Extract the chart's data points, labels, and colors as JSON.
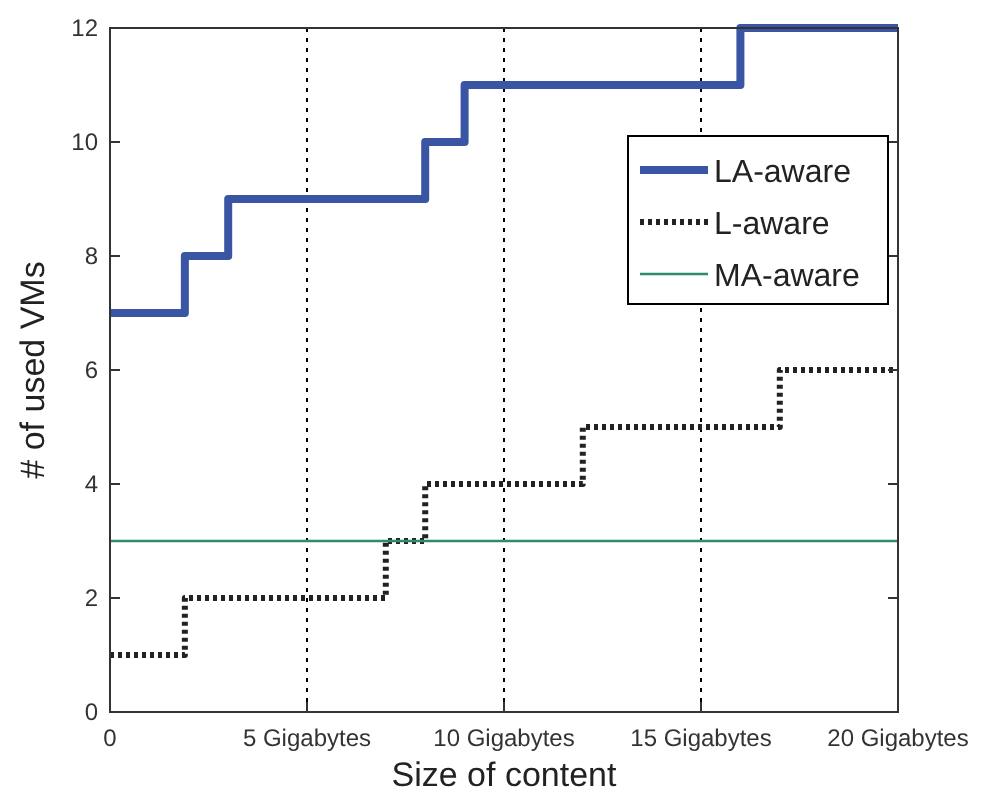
{
  "chart_data": {
    "type": "step",
    "xlabel": "Size of content",
    "ylabel": "# of used VMs",
    "xlim": [
      0,
      20
    ],
    "ylim": [
      0,
      12
    ],
    "xticks": [
      0,
      {
        "value": 5,
        "label": "5 Gigabytes"
      },
      {
        "value": 10,
        "label": "10 Gigabytes"
      },
      {
        "value": 15,
        "label": "15 Gigabytes"
      },
      {
        "value": 20,
        "label": "20 Gigabytes"
      }
    ],
    "yticks": [
      0,
      2,
      4,
      6,
      8,
      10,
      12
    ],
    "grid": "x",
    "legend": "right",
    "series": [
      {
        "name": "LA-aware",
        "color": "#3a55a4",
        "line_style": "solid",
        "x": [
          0,
          1.9,
          3,
          8,
          9,
          16,
          20
        ],
        "values": [
          7,
          8,
          9,
          10,
          11,
          12,
          12
        ]
      },
      {
        "name": "L-aware",
        "color": "#222222",
        "line_style": "dotted",
        "x": [
          0,
          1.9,
          7,
          8,
          12,
          17,
          20
        ],
        "values": [
          1,
          2,
          3,
          4,
          5,
          6,
          6
        ]
      },
      {
        "name": "MA-aware",
        "color": "#2e8b6e",
        "line_style": "solid",
        "x": [
          0,
          20
        ],
        "values": [
          3,
          3
        ]
      }
    ]
  }
}
